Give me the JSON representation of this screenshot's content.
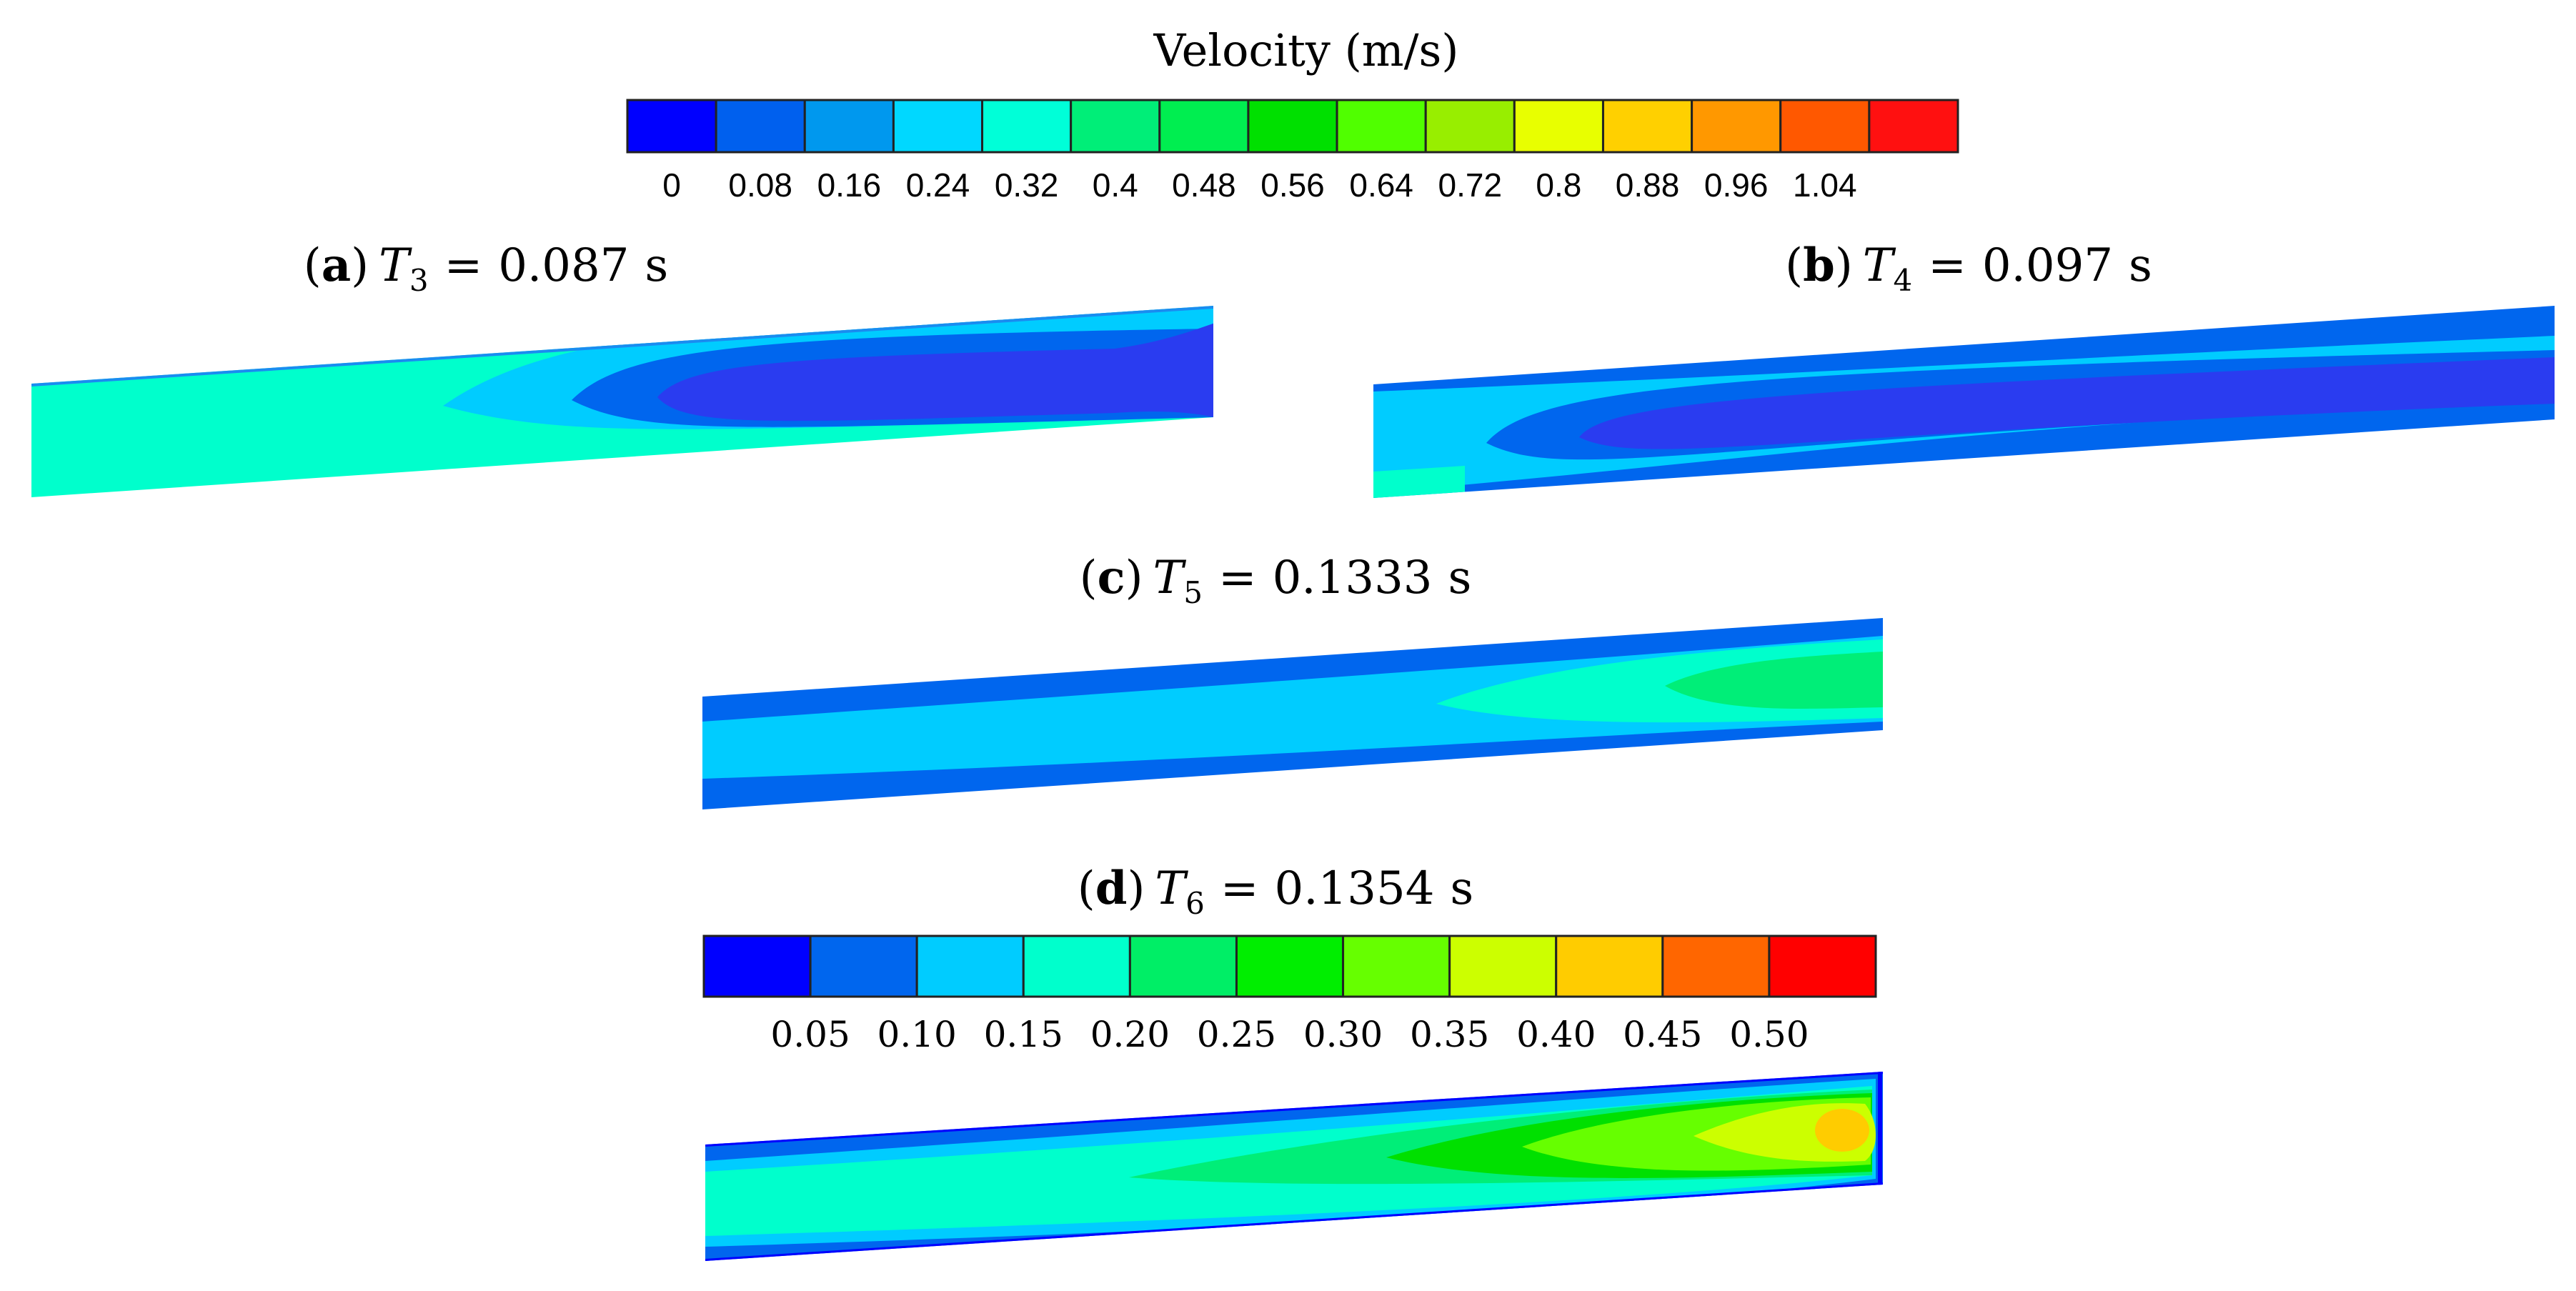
{
  "figure": {
    "legend_title": "Velocity (m/s)",
    "panels": [
      {
        "tag": "a",
        "symbol": "T",
        "subscript": "3",
        "equals": "=",
        "value": "0.087",
        "unit": "s"
      },
      {
        "tag": "b",
        "symbol": "T",
        "subscript": "4",
        "equals": "=",
        "value": "0.097",
        "unit": "s"
      },
      {
        "tag": "c",
        "symbol": "T",
        "subscript": "5",
        "equals": "=",
        "value": "0.1333",
        "unit": "s"
      },
      {
        "tag": "d",
        "symbol": "T",
        "subscript": "6",
        "equals": "=",
        "value": "0.1354",
        "unit": "s"
      }
    ]
  },
  "chart_data": [
    {
      "type": "heatmap",
      "title": "Velocity (m/s)",
      "legend_ticks": [
        "0",
        "0.08",
        "0.16",
        "0.24",
        "0.32",
        "0.4",
        "0.48",
        "0.56",
        "0.64",
        "0.72",
        "0.8",
        "0.88",
        "0.96",
        "1.04"
      ],
      "range": [
        0,
        1.04
      ],
      "colors": [
        "#0000ff",
        "#0060ee",
        "#0098ee",
        "#00d8ff",
        "#00ffd8",
        "#00ee78",
        "#00ee50",
        "#00e000",
        "#50ff00",
        "#98ee00",
        "#e8ff00",
        "#ffd000",
        "#ff9800",
        "#ff5800",
        "#ff1010"
      ],
      "applies_to": [
        "a",
        "b",
        "c"
      ]
    },
    {
      "type": "heatmap",
      "legend_ticks": [
        "0.05",
        "0.10",
        "0.15",
        "0.20",
        "0.25",
        "0.30",
        "0.35",
        "0.40",
        "0.45",
        "0.50"
      ],
      "range": [
        0.05,
        0.5
      ],
      "colors": [
        "#0000ff",
        "#0066ee",
        "#00ccff",
        "#00ffcc",
        "#00ee66",
        "#00ee00",
        "#66ff00",
        "#ccff00",
        "#ffcc00",
        "#ff6600",
        "#ff0000"
      ],
      "applies_to": [
        "d"
      ]
    }
  ]
}
